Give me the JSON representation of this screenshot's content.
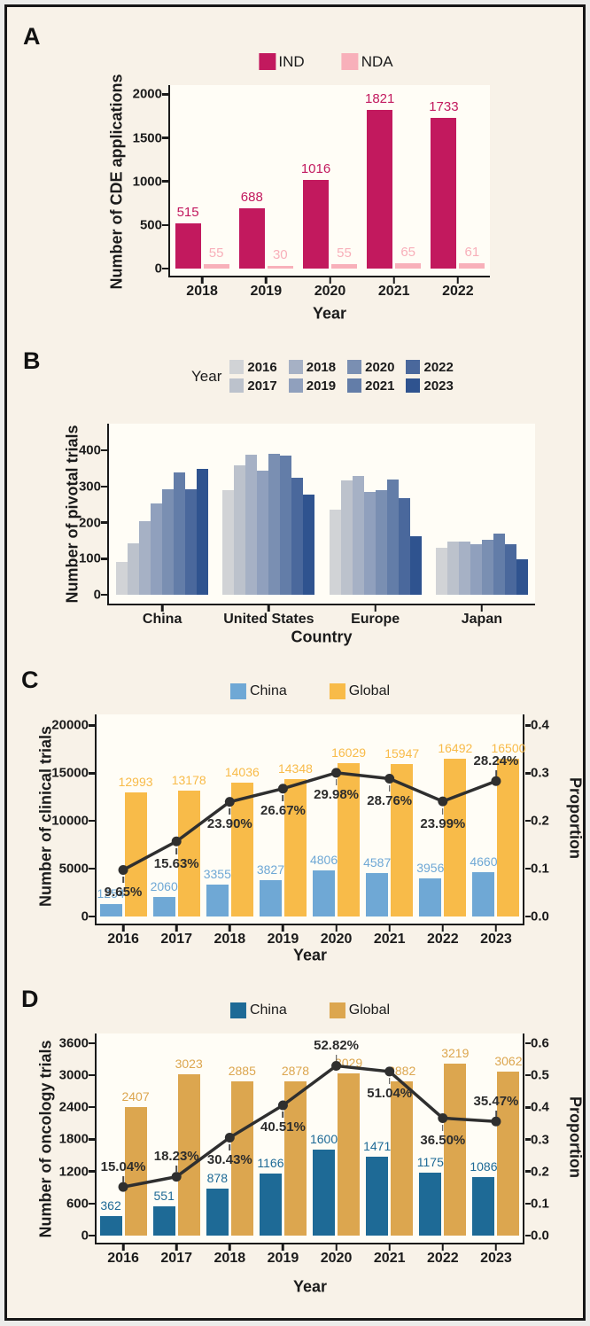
{
  "figure": {
    "background": "#f8f2e8",
    "border_color": "#161616",
    "panel_labels": [
      "A",
      "B",
      "C",
      "D"
    ]
  },
  "chart_data": [
    {
      "panel": "A",
      "type": "bar",
      "categories": [
        "2018",
        "2019",
        "2020",
        "2021",
        "2022"
      ],
      "series": [
        {
          "name": "IND",
          "color": "#c2195e",
          "values": [
            515,
            688,
            1016,
            1821,
            1733
          ]
        },
        {
          "name": "NDA",
          "color": "#f8b0ba",
          "values": [
            55,
            30,
            55,
            65,
            61
          ]
        }
      ],
      "xlabel": "Year",
      "ylabel": "Number of CDE applications",
      "yticks": [
        "0",
        "500",
        "1000",
        "1500",
        "2000"
      ],
      "ylim": [
        0,
        2100
      ],
      "legend_position": "top",
      "grid": false
    },
    {
      "panel": "B",
      "type": "bar",
      "legend_title": "Year",
      "categories": [
        "China",
        "United States",
        "Europe",
        "Japan"
      ],
      "series": [
        {
          "name": "2016",
          "color": "#d1d3d6",
          "values": [
            92,
            290,
            235,
            130
          ]
        },
        {
          "name": "2017",
          "color": "#bcc2cc",
          "values": [
            143,
            358,
            318,
            148
          ]
        },
        {
          "name": "2018",
          "color": "#a6b1c5",
          "values": [
            203,
            388,
            330,
            148
          ]
        },
        {
          "name": "2019",
          "color": "#90a0bd",
          "values": [
            252,
            344,
            284,
            139
          ]
        },
        {
          "name": "2020",
          "color": "#7a8fb2",
          "values": [
            292,
            390,
            289,
            152
          ]
        },
        {
          "name": "2021",
          "color": "#637da8",
          "values": [
            340,
            386,
            320,
            170
          ]
        },
        {
          "name": "2022",
          "color": "#4a689c",
          "values": [
            293,
            325,
            267,
            139
          ]
        },
        {
          "name": "2023",
          "color": "#2f538f",
          "values": [
            348,
            278,
            163,
            99
          ]
        }
      ],
      "xlabel": "Country",
      "ylabel": "Number of pivotal trials",
      "yticks": [
        "0",
        "100",
        "200",
        "300",
        "400"
      ],
      "ylim": [
        0,
        473
      ],
      "legend_position": "top",
      "grid": false
    },
    {
      "panel": "C",
      "type": "bar+line",
      "categories": [
        "2016",
        "2017",
        "2018",
        "2019",
        "2020",
        "2021",
        "2022",
        "2023"
      ],
      "series": [
        {
          "name": "China",
          "color": "#6fa8d5",
          "values": [
            1254,
            2060,
            3355,
            3827,
            4806,
            4587,
            3956,
            4660
          ]
        },
        {
          "name": "Global",
          "color": "#f8bb49",
          "values": [
            12993,
            13178,
            14036,
            14348,
            16029,
            15947,
            16492,
            16500
          ]
        }
      ],
      "line": {
        "name": "Proportion",
        "color": "#2f2f2f",
        "values": [
          0.0965,
          0.1563,
          0.239,
          0.2667,
          0.2998,
          0.2876,
          0.2399,
          0.2824
        ],
        "labels": [
          "9.65%",
          "15.63%",
          "23.90%",
          "26.67%",
          "29.98%",
          "28.76%",
          "23.99%",
          "28.24%"
        ],
        "label_side": [
          "below",
          "below",
          "below",
          "below",
          "below",
          "below",
          "below",
          "above"
        ]
      },
      "xlabel": "Year",
      "ylabel": "Number of clinical trials",
      "ylabel_right": "Proportion",
      "yticks": [
        "0",
        "5000",
        "10000",
        "15000",
        "20000"
      ],
      "ylim": [
        0,
        21100
      ],
      "yticks_right": [
        "0.0",
        "0.1",
        "0.2",
        "0.3",
        "0.4"
      ],
      "ylim_right": [
        0,
        0.422
      ],
      "legend_position": "top",
      "grid": false
    },
    {
      "panel": "D",
      "type": "bar+line",
      "categories": [
        "2016",
        "2017",
        "2018",
        "2019",
        "2020",
        "2021",
        "2022",
        "2023"
      ],
      "series": [
        {
          "name": "China",
          "color": "#1e6a96",
          "values": [
            362,
            551,
            878,
            1166,
            1600,
            1471,
            1175,
            1086
          ]
        },
        {
          "name": "Global",
          "color": "#dca64f",
          "values": [
            2407,
            3023,
            2885,
            2878,
            3029,
            2882,
            3219,
            3062
          ]
        }
      ],
      "line": {
        "name": "Proportion",
        "color": "#2f2f2f",
        "values": [
          0.1504,
          0.1823,
          0.3043,
          0.4051,
          0.5282,
          0.5104,
          0.365,
          0.3547
        ],
        "labels": [
          "15.04%",
          "18.23%",
          "30.43%",
          "40.51%",
          "52.82%",
          "51.04%",
          "36.50%",
          "35.47%"
        ],
        "label_side": [
          "above",
          "above",
          "below",
          "below",
          "above",
          "below",
          "below",
          "above"
        ]
      },
      "xlabel": "Year",
      "ylabel": "Number of oncology trials",
      "ylabel_right": "Proportion",
      "yticks": [
        "0",
        "600",
        "1200",
        "1800",
        "2400",
        "3000",
        "3600"
      ],
      "ylim": [
        0,
        3771
      ],
      "yticks_right": [
        "0.0",
        "0.1",
        "0.2",
        "0.3",
        "0.4",
        "0.5",
        "0.6"
      ],
      "ylim_right": [
        0,
        0.629
      ],
      "legend_position": "top",
      "grid": false
    }
  ]
}
